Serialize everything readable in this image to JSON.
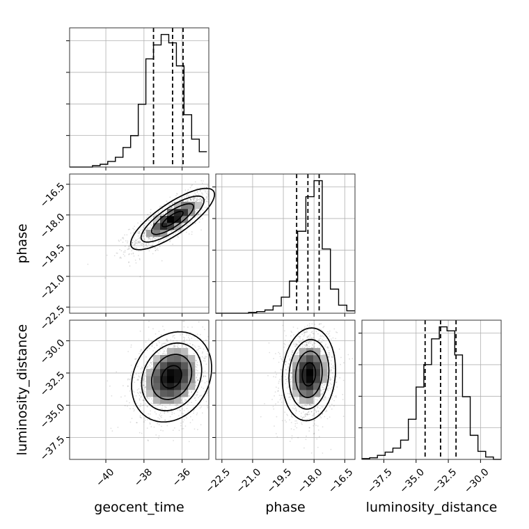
{
  "chart_data": {
    "type": "corner",
    "parameters": [
      "geocent_time",
      "phase",
      "luminosity_distance"
    ],
    "axis_labels": {
      "geocent_time": "geocent_time",
      "phase": "phase",
      "luminosity_distance": "luminosity_distance"
    },
    "ranges": {
      "geocent_time": [
        -41.9,
        -34.6
      ],
      "phase": [
        -22.8,
        -16.0
      ],
      "luminosity_distance": [
        -39.2,
        -28.4
      ]
    },
    "ticks": {
      "geocent_time": [
        -40,
        -38,
        -36
      ],
      "phase": [
        -22.5,
        -21.0,
        -19.5,
        -18.0,
        -16.5
      ],
      "luminosity_distance": [
        -37.5,
        -35.0,
        -32.5,
        -30.0
      ]
    },
    "tick_labels": {
      "geocent_time": [
        "−40",
        "−38",
        "−36"
      ],
      "phase": [
        "−22.5",
        "−21.0",
        "−19.5",
        "−18.0",
        "−16.5"
      ],
      "luminosity_distance": [
        "−37.5",
        "−35.0",
        "−32.5",
        "−30.0"
      ]
    },
    "quantiles": {
      "geocent_time": [
        -37.5,
        -36.5,
        -35.95
      ],
      "phase": [
        -18.85,
        -18.3,
        -17.75
      ],
      "luminosity_distance": [
        -34.3,
        -33.1,
        -31.9
      ]
    },
    "histograms": {
      "geocent_time": {
        "edges": [
          -41.9,
          -41.5,
          -41.1,
          -40.7,
          -40.3,
          -39.9,
          -39.5,
          -39.1,
          -38.7,
          -38.3,
          -37.9,
          -37.5,
          -37.1,
          -36.7,
          -36.3,
          -35.9,
          -35.5,
          -35.1,
          -34.7
        ],
        "counts": [
          0,
          0,
          0,
          2,
          4,
          8,
          14,
          28,
          45,
          90,
          155,
          175,
          190,
          178,
          145,
          75,
          40,
          22
        ]
      },
      "phase": {
        "edges": [
          -22.8,
          -22.4,
          -22.0,
          -21.6,
          -21.2,
          -20.8,
          -20.4,
          -20.0,
          -19.6,
          -19.2,
          -18.8,
          -18.4,
          -18.0,
          -17.6,
          -17.2,
          -16.8,
          -16.4,
          -16.0
        ],
        "counts": [
          0,
          0,
          0,
          0,
          1,
          2,
          4,
          9,
          20,
          40,
          102,
          145,
          165,
          80,
          30,
          10,
          3
        ]
      },
      "luminosity_distance": {
        "edges": [
          -39.2,
          -38.6,
          -38.0,
          -37.4,
          -36.8,
          -36.2,
          -35.6,
          -35.0,
          -34.4,
          -33.8,
          -33.2,
          -32.6,
          -32.0,
          -31.4,
          -30.8,
          -30.2,
          -29.6,
          -29.0,
          -28.4
        ],
        "counts": [
          1,
          2,
          5,
          9,
          14,
          24,
          50,
          90,
          118,
          150,
          165,
          160,
          130,
          78,
          30,
          10,
          3,
          0
        ]
      }
    },
    "pairs": [
      {
        "x": "geocent_time",
        "y": "phase",
        "center": [
          -36.5,
          -18.2
        ],
        "sd": [
          1.1,
          0.75
        ],
        "corr": 0.8
      },
      {
        "x": "geocent_time",
        "y": "luminosity_distance",
        "center": [
          -36.55,
          -32.8
        ],
        "sd": [
          1.05,
          1.75
        ],
        "corr": 0.2
      },
      {
        "x": "phase",
        "y": "luminosity_distance",
        "center": [
          -18.25,
          -32.6
        ],
        "sd": [
          0.65,
          1.8
        ],
        "corr": 0.1
      }
    ],
    "contour_levels_sigma": [
      0.5,
      1.0,
      1.5,
      2.0
    ],
    "grid": true
  }
}
